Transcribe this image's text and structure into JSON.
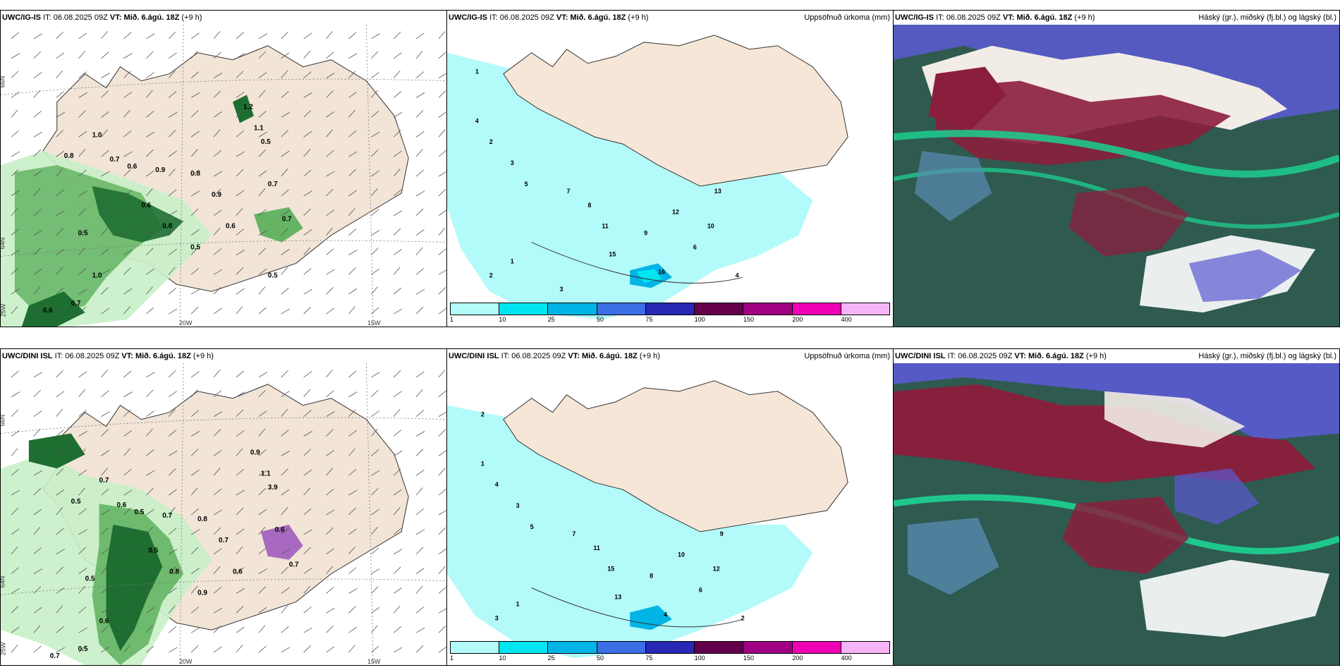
{
  "rows": [
    {
      "model": "UWC/IG-IS",
      "it_label": "IT:",
      "it_value": "06.08.2025 09Z",
      "vt_label": "VT:",
      "vt_value": "Mið. 6.ágú. 18Z",
      "lead": "(+9 h)"
    },
    {
      "model": "UWC/DINI ISL",
      "it_label": "IT:",
      "it_value": "06.08.2025 09Z",
      "vt_label": "VT:",
      "vt_value": "Mið. 6.ágú. 18Z",
      "lead": "(+9 h)"
    }
  ],
  "precip_title": "Uppsöfnuð úrkoma (mm)",
  "cloud_title": "Háský (gr.), miðský (fj.bl.) og lágský (bl.)",
  "grid_labels": {
    "lat_66": "66N",
    "lat_64": "64N",
    "lon_20": "20W",
    "lon_15": "15W",
    "lon_25": "25W"
  },
  "colorbar": {
    "ticks": [
      "1",
      "10",
      "25",
      "50",
      "75",
      "100",
      "150",
      "200",
      "400"
    ],
    "colors": [
      "#b3fafa",
      "#00e6f0",
      "#00b4e6",
      "#3c6ee6",
      "#2828b4",
      "#64004b",
      "#a00082",
      "#f000b4",
      "#f5b4f5"
    ]
  },
  "colors": {
    "land": "#f5e6d8",
    "ocean": "#ffffff",
    "precip_light": "#b3fafa",
    "green_light": "#c8f0c8",
    "green_mid": "#64b464",
    "green_dark": "#1e6e32",
    "cloud_dark": "#2f5a50",
    "cloud_high": "#8b1e3c",
    "cloud_mid": "#1ec88c",
    "cloud_low": "#5a5ad2"
  },
  "wind_labels_top": [
    "1.0",
    "0.8",
    "0.7",
    "0.6",
    "0.9",
    "0.8",
    "1.2",
    "1.1",
    "0.5",
    "0.7",
    "0.9",
    "0.6",
    "0.8",
    "0.5",
    "0.6",
    "0.7",
    "0.5",
    "1.0",
    "0.7",
    "0.6",
    "0.5"
  ],
  "wind_labels_bottom": [
    "0.7",
    "0.5",
    "0.6",
    "0.5",
    "0.7",
    "0.8",
    "0.9",
    "1.1",
    "3.9",
    "0.6",
    "0.7",
    "0.5",
    "0.8",
    "0.9",
    "0.6",
    "0.7",
    "0.5",
    "0.6",
    "0.5",
    "0.7"
  ],
  "precip_numbers_top": [
    "1",
    "4",
    "2",
    "3",
    "5",
    "7",
    "8",
    "11",
    "15",
    "12",
    "9",
    "10",
    "6",
    "13",
    "16",
    "4",
    "2",
    "1",
    "3"
  ],
  "precip_numbers_bottom": [
    "2",
    "1",
    "4",
    "3",
    "5",
    "7",
    "11",
    "15",
    "13",
    "10",
    "8",
    "12",
    "6",
    "9",
    "4",
    "2",
    "3",
    "1"
  ]
}
